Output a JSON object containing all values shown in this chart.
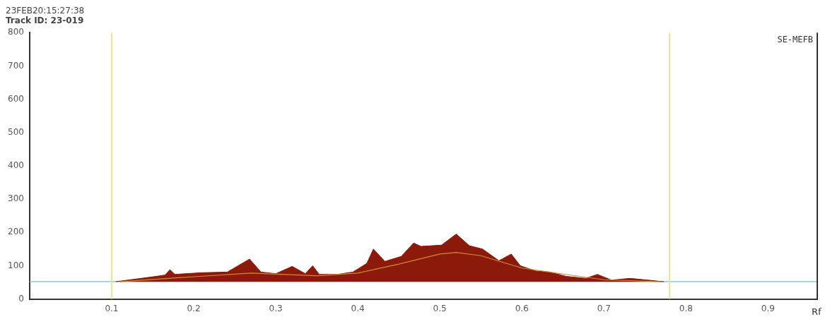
{
  "chart_data": {
    "type": "area",
    "title": "23FEB20:15:27:38",
    "subtitle": "Track ID: 23-019",
    "xlabel": "Rf",
    "annotations": [
      "SE-MEFB"
    ],
    "xlim": [
      0,
      0.96
    ],
    "xticks": [
      0.1,
      0.2,
      0.3,
      0.4,
      0.5,
      0.6,
      0.7,
      0.8,
      0.9
    ],
    "ylim": [
      0,
      800
    ],
    "yticks": [
      0,
      100,
      200,
      300,
      400,
      500,
      600,
      700,
      800
    ],
    "grid": false,
    "legend": false,
    "series": [
      {
        "color": "#8b1a0a",
        "x": [
          0.105,
          0.151,
          0.165,
          0.171,
          0.177,
          0.21,
          0.241,
          0.268,
          0.282,
          0.3,
          0.32,
          0.336,
          0.345,
          0.353,
          0.375,
          0.394,
          0.411,
          0.419,
          0.433,
          0.453,
          0.468,
          0.477,
          0.502,
          0.52,
          0.536,
          0.552,
          0.572,
          0.587,
          0.598,
          0.617,
          0.634,
          0.654,
          0.678,
          0.692,
          0.709,
          0.732,
          0.773
        ],
        "values": [
          52,
          67,
          72,
          88,
          74,
          79,
          81,
          120,
          81,
          76,
          98,
          76,
          100,
          74,
          74,
          81,
          107,
          150,
          113,
          128,
          168,
          158,
          162,
          195,
          160,
          150,
          115,
          135,
          100,
          84,
          81,
          68,
          62,
          74,
          57,
          62,
          52
        ]
      },
      {
        "type": "line",
        "color": "#d08a30",
        "x": [
          0.11,
          0.2,
          0.27,
          0.35,
          0.4,
          0.45,
          0.5,
          0.52,
          0.55,
          0.6,
          0.65,
          0.7,
          0.77
        ],
        "values": [
          52,
          67,
          78,
          70,
          78,
          105,
          135,
          140,
          130,
          93,
          75,
          58,
          52
        ]
      }
    ],
    "ref_lines": [
      {
        "axis": "y",
        "value": 52,
        "color": "#7ec8e3"
      },
      {
        "axis": "x",
        "value": 0.1,
        "color": "#e6e69a"
      },
      {
        "axis": "x",
        "value": 0.78,
        "color": "#e6e69a"
      }
    ]
  }
}
